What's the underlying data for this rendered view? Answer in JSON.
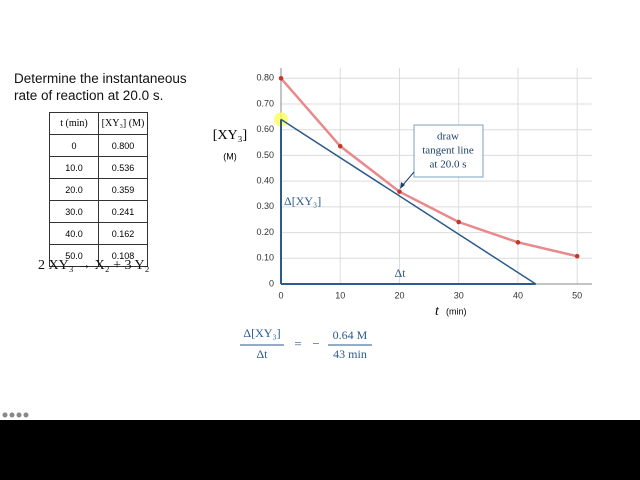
{
  "prompt": "Determine the instantaneous rate of reaction at 20.0 s.",
  "table": {
    "header": [
      "t (min)",
      "[XY₃] (M)"
    ],
    "rows": [
      [
        "0",
        "0.800"
      ],
      [
        "10.0",
        "0.536"
      ],
      [
        "20.0",
        "0.359"
      ],
      [
        "30.0",
        "0.241"
      ],
      [
        "40.0",
        "0.162"
      ],
      [
        "50.0",
        "0.108"
      ]
    ]
  },
  "equation": "2 XY₃ → X₂ + 3 Y₂",
  "rate_formula": {
    "numerator": "Δ[XY₃]",
    "denominator": "Δt",
    "equals": "=",
    "sign": "−",
    "value_numerator": "0.64 M",
    "value_denominator": "43 min"
  },
  "chart_data": {
    "type": "scatter",
    "ylabel": "[XY₃]",
    "ylabel_unit": "(M)",
    "xlabel": "t",
    "xlabel_unit": "(min)",
    "xlim": [
      0,
      52.5
    ],
    "ylim": [
      0,
      0.84
    ],
    "xticks": [
      0,
      10,
      20,
      30,
      40,
      50
    ],
    "yticks": [
      0,
      {
        "value": 0.1,
        "label": "0.10"
      },
      {
        "value": 0.2,
        "label": "0.20"
      },
      {
        "value": 0.3,
        "label": "0.30"
      },
      {
        "value": 0.4,
        "label": "0.40"
      },
      {
        "value": 0.5,
        "label": "0.50"
      },
      {
        "value": 0.6,
        "label": "0.60"
      },
      {
        "value": 0.7,
        "label": "0.70"
      },
      {
        "value": 0.8,
        "label": "0.80"
      }
    ],
    "grid": true,
    "x": [
      0,
      10,
      20,
      30,
      40,
      50
    ],
    "values": [
      0.8,
      0.536,
      0.359,
      0.241,
      0.162,
      0.108
    ],
    "point_color": "#c0392b",
    "curve_color": "#e8898b",
    "tangent": {
      "x": [
        0,
        43
      ],
      "values": [
        0.64,
        0
      ],
      "color": "#2c5a8c"
    },
    "annotations": {
      "delta_y": "Δ[XY₃]",
      "delta_x": "Δt",
      "callout": [
        "draw",
        "tangent line",
        "at 20.0 s"
      ]
    }
  }
}
